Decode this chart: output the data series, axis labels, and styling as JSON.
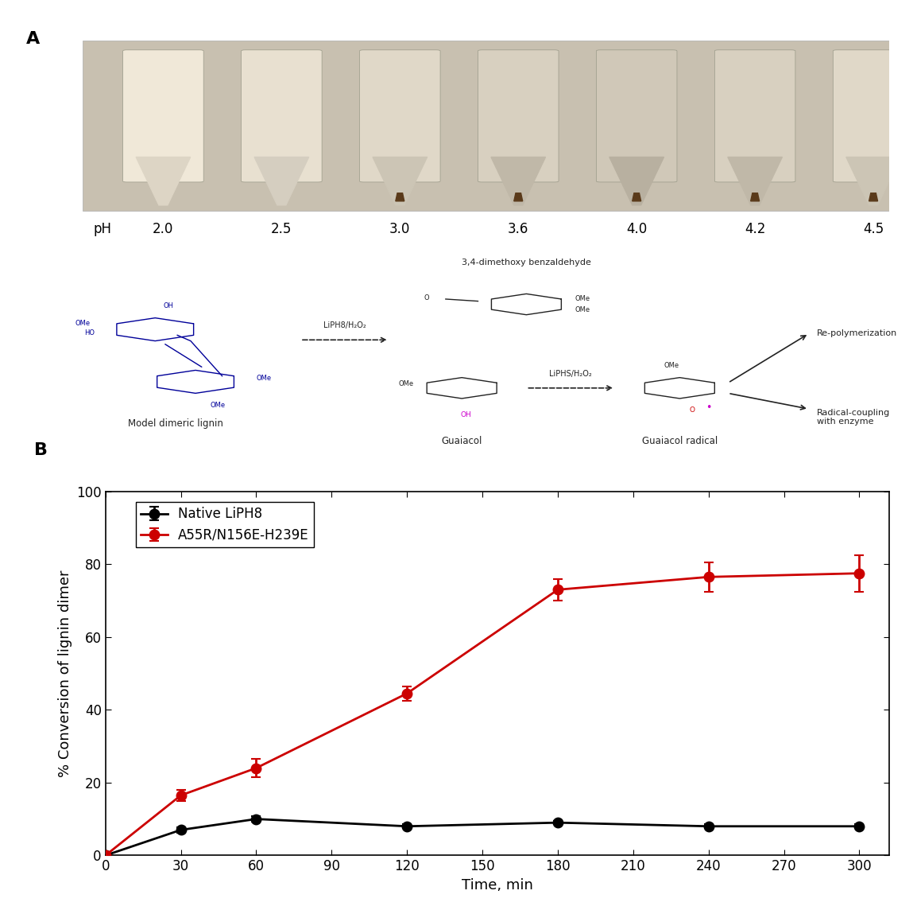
{
  "panel_a_label": "A",
  "panel_b_label": "B",
  "native_liph8_color": "#000000",
  "mutant_color": "#cc0000",
  "native_x": [
    0,
    30,
    60,
    120,
    180,
    240,
    300
  ],
  "native_y": [
    0,
    7,
    10,
    8,
    9,
    8,
    8
  ],
  "native_yerr": [
    0,
    0.8,
    0.7,
    0.5,
    0.5,
    0.5,
    0.5
  ],
  "mutant_x": [
    0,
    30,
    60,
    120,
    180,
    240,
    300
  ],
  "mutant_y": [
    0,
    16.5,
    24,
    44.5,
    73,
    76.5,
    77.5
  ],
  "mutant_yerr": [
    0,
    1.5,
    2.5,
    2.0,
    3.0,
    4.0,
    5.0
  ],
  "xlabel": "Time, min",
  "ylabel": "% Conversion of lignin dimer",
  "legend_native": "Native LiPH8",
  "legend_mutant": "A55R/N156E-H239E",
  "xlim": [
    0,
    312
  ],
  "ylim": [
    0,
    100
  ],
  "xticks": [
    0,
    30,
    60,
    90,
    120,
    150,
    180,
    210,
    240,
    270,
    300
  ],
  "yticks": [
    0,
    20,
    40,
    60,
    80,
    100
  ],
  "marker_size": 9,
  "line_width": 2.0,
  "axis_fontsize": 13,
  "tick_fontsize": 12,
  "legend_fontsize": 12,
  "label_fontsize": 16,
  "background_color": "#ffffff",
  "ph_labels": [
    "2.0",
    "2.5",
    "3.0",
    "3.6",
    "4.0",
    "4.2",
    "4.5"
  ],
  "photo_bg": "#c8c0b2",
  "tube_top_colors": [
    "#f0e8d8",
    "#e8e0d0",
    "#e0d8c8",
    "#d8d0c0",
    "#d0c8b8",
    "#d8d0c0",
    "#e0d8c8"
  ],
  "tube_body_colors": [
    "#ddd5c5",
    "#d5cec0",
    "#ccc5b5",
    "#c0b8a8",
    "#b8b0a0",
    "#c0b8a8",
    "#ccc5b5"
  ],
  "chem_title": "3,4-dimethoxy benzaldehyde",
  "chem_label_model": "Model dimeric lignin",
  "chem_label_guaiacol": "Guaiacol",
  "chem_label_radical": "Guaiacol radical",
  "chem_label_repoly": "Re-polymerization",
  "chem_label_coupling": "Radical-coupling\nwith enzyme",
  "chem_arrow1": "LiPH8/H₂O₂",
  "chem_arrow2": "LiPHS/H₂O₂",
  "blue_color": "#000099",
  "dark_color": "#222222"
}
